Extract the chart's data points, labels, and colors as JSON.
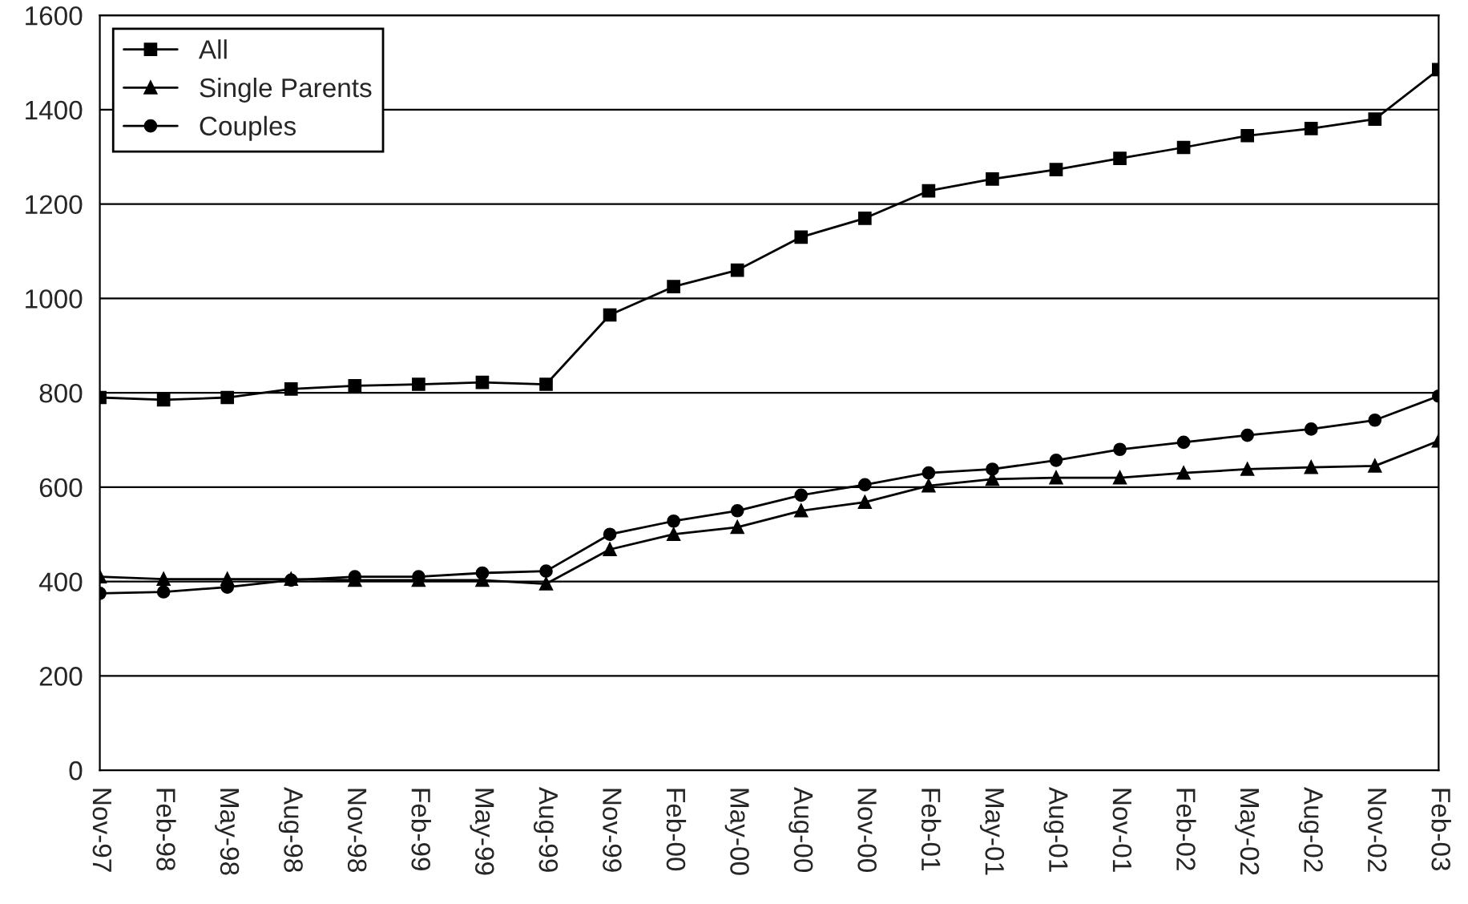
{
  "chart_data": {
    "type": "line",
    "categories": [
      "Nov-97",
      "Feb-98",
      "May-98",
      "Aug-98",
      "Nov-98",
      "Feb-99",
      "May-99",
      "Aug-99",
      "Nov-99",
      "Feb-00",
      "May-00",
      "Aug-00",
      "Nov-00",
      "Feb-01",
      "May-01",
      "Aug-01",
      "Nov-01",
      "Feb-02",
      "May-02",
      "Aug-02",
      "Nov-02",
      "Feb-03"
    ],
    "series": [
      {
        "name": "All",
        "color": "#000000",
        "marker": "square",
        "values": [
          790,
          785,
          790,
          808,
          815,
          818,
          822,
          818,
          965,
          1025,
          1060,
          1130,
          1170,
          1228,
          1253,
          1273,
          1297,
          1320,
          1345,
          1360,
          1380,
          1485
        ]
      },
      {
        "name": "Single Parents",
        "color": "#000000",
        "marker": "triangle",
        "values": [
          410,
          405,
          405,
          405,
          403,
          403,
          403,
          395,
          468,
          500,
          515,
          550,
          568,
          603,
          617,
          620,
          620,
          630,
          638,
          642,
          645,
          698
        ]
      },
      {
        "name": "Couples",
        "color": "#000000",
        "marker": "circle",
        "values": [
          375,
          378,
          388,
          403,
          410,
          410,
          418,
          422,
          500,
          528,
          550,
          583,
          605,
          630,
          638,
          657,
          680,
          695,
          710,
          723,
          742,
          793
        ]
      }
    ],
    "ylim": [
      0,
      1600
    ],
    "yticks": [
      0,
      200,
      400,
      600,
      800,
      1000,
      1200,
      1400,
      1600
    ],
    "grid": "y",
    "legend": "top left",
    "line_style": "solid"
  }
}
